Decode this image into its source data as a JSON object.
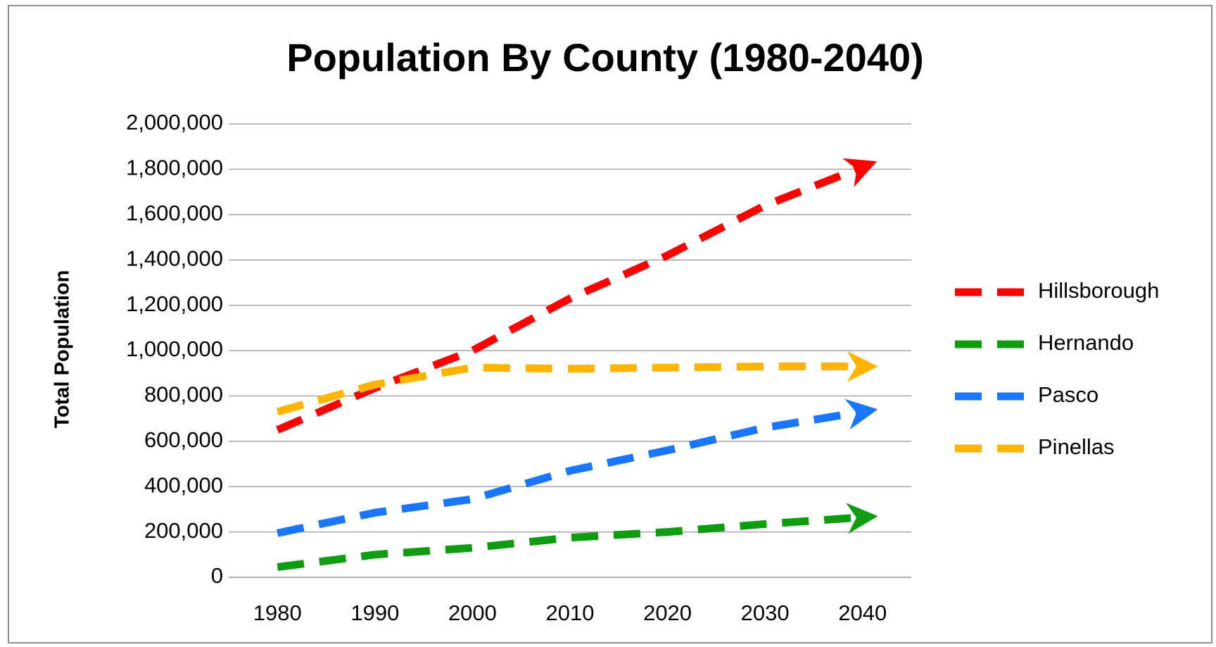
{
  "chart_data": {
    "type": "line",
    "title": "Population By County (1980-2040)",
    "y_label": "Total Population",
    "categories": [
      "1980",
      "1990",
      "2000",
      "2010",
      "2020",
      "2030",
      "2040"
    ],
    "series": [
      {
        "name": "Hillsborough",
        "color": "#ff0000",
        "values": [
          650000,
          835000,
          1000000,
          1230000,
          1420000,
          1640000,
          1810000
        ]
      },
      {
        "name": "Hernando",
        "color": "#109c10",
        "values": [
          45000,
          100000,
          130000,
          175000,
          200000,
          235000,
          265000
        ]
      },
      {
        "name": "Pasco",
        "color": "#1a75ff",
        "values": [
          195000,
          285000,
          345000,
          470000,
          560000,
          660000,
          730000
        ]
      },
      {
        "name": "Pinellas",
        "color": "#ffb400",
        "values": [
          730000,
          850000,
          925000,
          920000,
          925000,
          930000,
          930000
        ]
      }
    ],
    "ylim": [
      0,
      2000000
    ],
    "yticks": [
      0,
      {
        "value": 200000,
        "label": "200,000"
      },
      {
        "value": 400000,
        "label": "400,000"
      },
      {
        "value": 600000,
        "label": "600,000"
      },
      {
        "value": 800000,
        "label": "800,000"
      },
      {
        "value": 1000000,
        "label": "1,000,000"
      },
      {
        "value": 1200000,
        "label": "1,200,000"
      },
      {
        "value": 1400000,
        "label": "1,400,000"
      },
      {
        "value": 1600000,
        "label": "1,600,000"
      },
      {
        "value": 1800000,
        "label": "1,800,000"
      },
      {
        "value": 2000000,
        "label": "2,000,000"
      }
    ],
    "grid": true,
    "legend": "right"
  }
}
